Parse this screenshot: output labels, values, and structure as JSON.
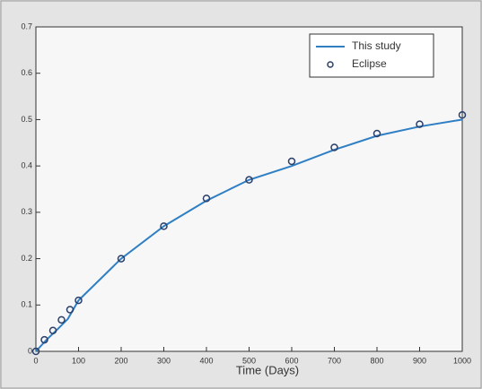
{
  "chart_data": {
    "type": "line",
    "x_label": "Time (Days)",
    "xlim": [
      0,
      1000
    ],
    "xticks": [
      0,
      100,
      200,
      300,
      400,
      500,
      600,
      700,
      800,
      900,
      1000
    ],
    "ylim": [
      0,
      0.7
    ],
    "yticks": [
      0,
      0.1,
      0.2,
      0.3,
      0.4,
      0.5,
      0.6,
      0.7
    ],
    "legend": "upper right",
    "series": [
      {
        "name": "This study",
        "color": "#2f7fc4",
        "type": "line",
        "x": [
          0,
          25,
          50,
          75,
          100,
          200,
          300,
          400,
          500,
          600,
          700,
          800,
          900,
          1000
        ],
        "values": [
          0,
          0.025,
          0.047,
          0.07,
          0.11,
          0.2,
          0.27,
          0.325,
          0.37,
          0.4,
          0.435,
          0.465,
          0.485,
          0.5
        ]
      },
      {
        "name": "Eclipse",
        "color": "#2a3f6a",
        "type": "scatter",
        "x": [
          0,
          20,
          40,
          60,
          80,
          100,
          200,
          300,
          400,
          500,
          600,
          700,
          800,
          900,
          1000
        ],
        "values": [
          0,
          0.025,
          0.045,
          0.068,
          0.09,
          0.11,
          0.2,
          0.27,
          0.33,
          0.37,
          0.41,
          0.44,
          0.47,
          0.49,
          0.51
        ]
      }
    ]
  }
}
